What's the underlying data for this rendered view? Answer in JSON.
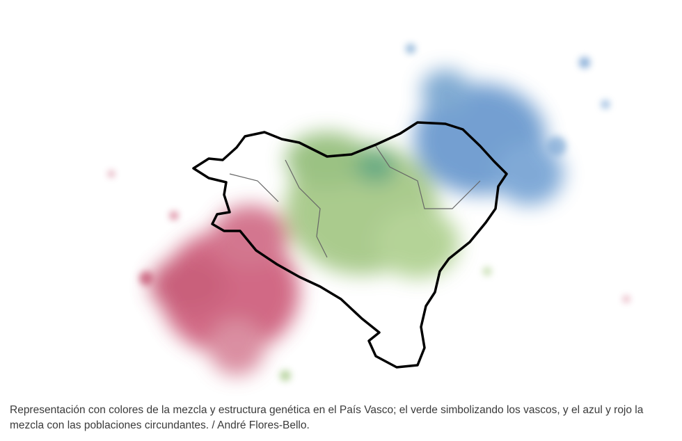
{
  "figure": {
    "caption": "Representación con colores de la mezcla y estructura genética en el País Vasco; el verde simbolizando los vascos, y el azul y rojo la mezcla con las poblaciones circundantes. / André Flores-Bello."
  }
}
